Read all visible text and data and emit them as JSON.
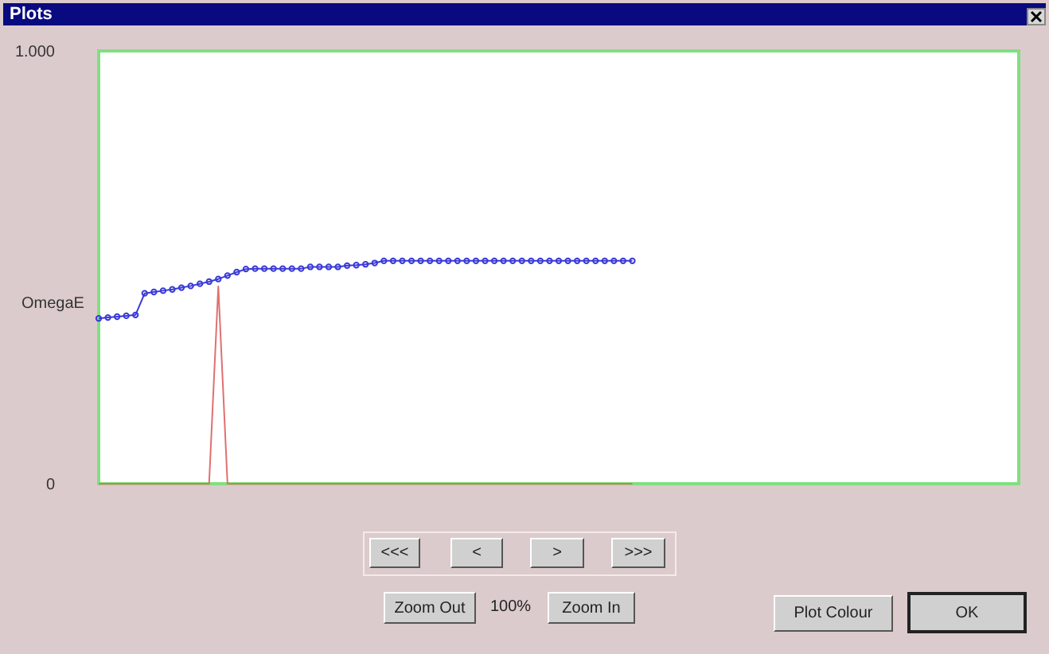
{
  "chart_data": {
    "type": "line",
    "title": "Plots",
    "ylabel": "OmegaE",
    "categories": [
      null,
      null,
      null,
      null,
      null,
      null,
      null,
      null,
      null,
      null,
      null,
      null,
      null,
      null,
      null,
      null,
      null,
      null,
      null,
      null,
      null,
      null,
      null,
      null,
      null,
      null,
      null,
      null,
      null,
      null,
      null,
      null,
      null,
      null,
      null,
      null,
      null,
      null,
      null,
      null,
      null,
      null,
      null,
      null,
      null,
      null,
      null,
      null,
      null,
      null,
      null,
      null,
      null,
      null,
      null,
      null,
      null,
      null,
      null,
      null,
      null,
      null,
      null,
      null,
      null,
      null,
      null,
      null,
      null,
      null,
      null,
      null,
      null,
      null,
      null,
      null,
      null,
      null,
      null,
      null,
      null,
      null,
      null,
      null,
      null,
      null,
      null,
      null,
      null,
      null,
      null,
      null,
      null,
      null,
      null,
      null,
      null,
      null,
      null,
      null,
      null
    ],
    "series": [
      {
        "color": "#3a3ad8",
        "marker": "circle",
        "values": [
          0.382,
          0.384,
          0.386,
          0.388,
          0.39,
          0.44,
          0.443,
          0.446,
          0.449,
          0.453,
          0.457,
          0.462,
          0.467,
          0.473,
          0.481,
          0.489,
          0.496,
          0.497,
          0.497,
          0.497,
          0.497,
          0.497,
          0.497,
          0.501,
          0.501,
          0.501,
          0.501,
          0.504,
          0.505,
          0.507,
          0.51,
          0.515,
          0.515,
          0.515,
          0.515,
          0.515,
          0.515,
          0.515,
          0.515,
          0.515,
          0.515,
          0.515,
          0.515,
          0.515,
          0.515,
          0.515,
          0.515,
          0.515,
          0.515,
          0.515,
          0.515,
          0.515,
          0.515,
          0.515,
          0.515,
          0.515,
          0.515,
          0.515,
          0.515,
          null,
          null,
          null,
          null,
          null,
          null,
          null,
          null,
          null,
          null,
          null,
          null,
          null,
          null,
          null,
          null,
          null,
          null,
          null,
          null,
          null,
          null,
          null,
          null,
          null,
          null,
          null,
          null,
          null,
          null,
          null,
          null,
          null,
          null,
          null,
          null,
          null,
          null,
          null,
          null,
          null,
          null
        ]
      },
      {
        "color": "#e07070",
        "marker": "none",
        "values": [
          0,
          0,
          0,
          0,
          0,
          0,
          0,
          0,
          0,
          0,
          0,
          0,
          0,
          0.456,
          0,
          0,
          0,
          0,
          0,
          0,
          0,
          0,
          0,
          0,
          0,
          0,
          0,
          0,
          0,
          0,
          0,
          0,
          0,
          0,
          0,
          0,
          0,
          0,
          0,
          0,
          0,
          0,
          0,
          0,
          0,
          0,
          0,
          0,
          0,
          0,
          0,
          0,
          0,
          0,
          0,
          0,
          0,
          0,
          0,
          null,
          null,
          null,
          null,
          null,
          null,
          null,
          null,
          null,
          null,
          null,
          null,
          null,
          null,
          null,
          null,
          null,
          null,
          null,
          null,
          null,
          null,
          null,
          null,
          null,
          null,
          null,
          null,
          null,
          null,
          null,
          null,
          null,
          null,
          null,
          null,
          null,
          null,
          null,
          null,
          null,
          null
        ]
      }
    ],
    "ylim": [
      0,
      1
    ],
    "grid": false,
    "yticks": [
      0,
      {
        "value": 1,
        "label": "1.000"
      }
    ],
    "annotations": [
      "<<<",
      "<",
      ">",
      ">>>",
      "Zoom Out",
      "100%",
      "Zoom In",
      "Plot Colour",
      "OK"
    ]
  }
}
